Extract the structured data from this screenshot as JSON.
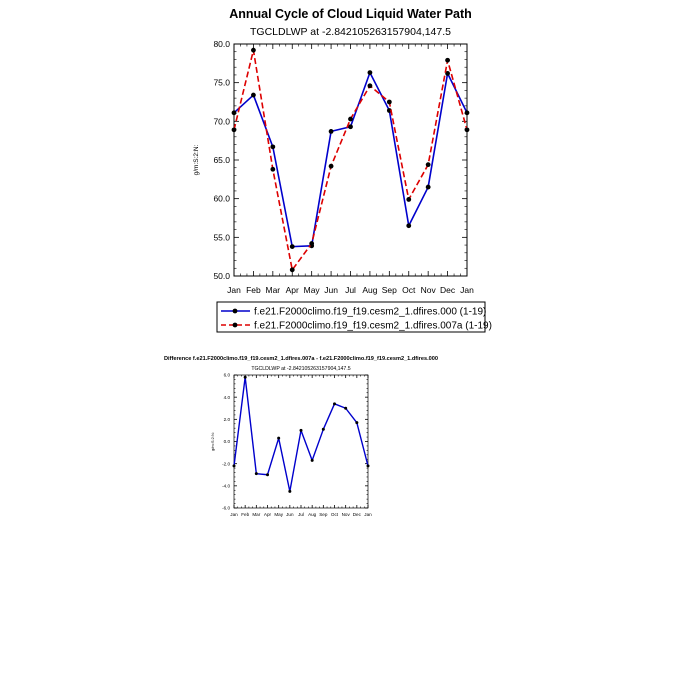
{
  "chart_data": [
    {
      "type": "line",
      "title": "Annual Cycle of Cloud Liquid Water Path",
      "subtitle": "TGCLDLWP at -2.842105263157904,147.5",
      "xlabel": "",
      "ylabel": "g/m:S:2:N:",
      "categories": [
        "Jan",
        "Feb",
        "Mar",
        "Apr",
        "May",
        "Jun",
        "Jul",
        "Aug",
        "Sep",
        "Oct",
        "Nov",
        "Dec",
        "Jan"
      ],
      "ylim": [
        50.0,
        80.0
      ],
      "yticks": [
        "50.0",
        "55.0",
        "60.0",
        "65.0",
        "70.0",
        "75.0",
        "80.0"
      ],
      "legend_position": "below",
      "series": [
        {
          "name": "f.e21.F2000climo.f19_f19.cesm2_1.dfires.000 (1-19)",
          "color": "#0000cc",
          "dash": "solid",
          "values": [
            71.1,
            73.4,
            66.7,
            53.8,
            53.9,
            68.7,
            69.3,
            76.3,
            71.4,
            56.5,
            61.5,
            76.2,
            71.1
          ]
        },
        {
          "name": "f.e21.F2000climo.f19_f19.cesm2_1.dfires.007a (1-19)",
          "color": "#dd0000",
          "dash": "dashed",
          "values": [
            68.9,
            79.2,
            63.8,
            50.8,
            54.2,
            64.2,
            70.3,
            74.6,
            72.5,
            59.9,
            64.4,
            77.9,
            68.9
          ]
        }
      ]
    },
    {
      "type": "line",
      "title": "Difference f.e21.F2000climo.f19_f19.cesm2_1.dfires.007a - f.e21.F2000climo.f19_f19.cesm2_1.dfires.000",
      "subtitle": "TGCLDLWP at -2.842105263157904,147.5",
      "xlabel": "",
      "ylabel": "g/m:S:2:N:",
      "categories": [
        "Jan",
        "Feb",
        "Mar",
        "Apr",
        "May",
        "Jun",
        "Jul",
        "Aug",
        "Sep",
        "Oct",
        "Nov",
        "Dec",
        "Jan"
      ],
      "ylim": [
        -6.0,
        6.0
      ],
      "yticks": [
        "-6.0",
        "-4.0",
        "-2.0",
        "0.0",
        "2.0",
        "4.0",
        "6.0"
      ],
      "series": [
        {
          "name": "difference",
          "color": "#0000cc",
          "dash": "solid",
          "values": [
            -2.2,
            5.8,
            -2.9,
            -3.0,
            0.3,
            -4.5,
            1.0,
            -1.7,
            1.1,
            3.4,
            3.0,
            1.7,
            -2.2
          ]
        }
      ]
    }
  ]
}
